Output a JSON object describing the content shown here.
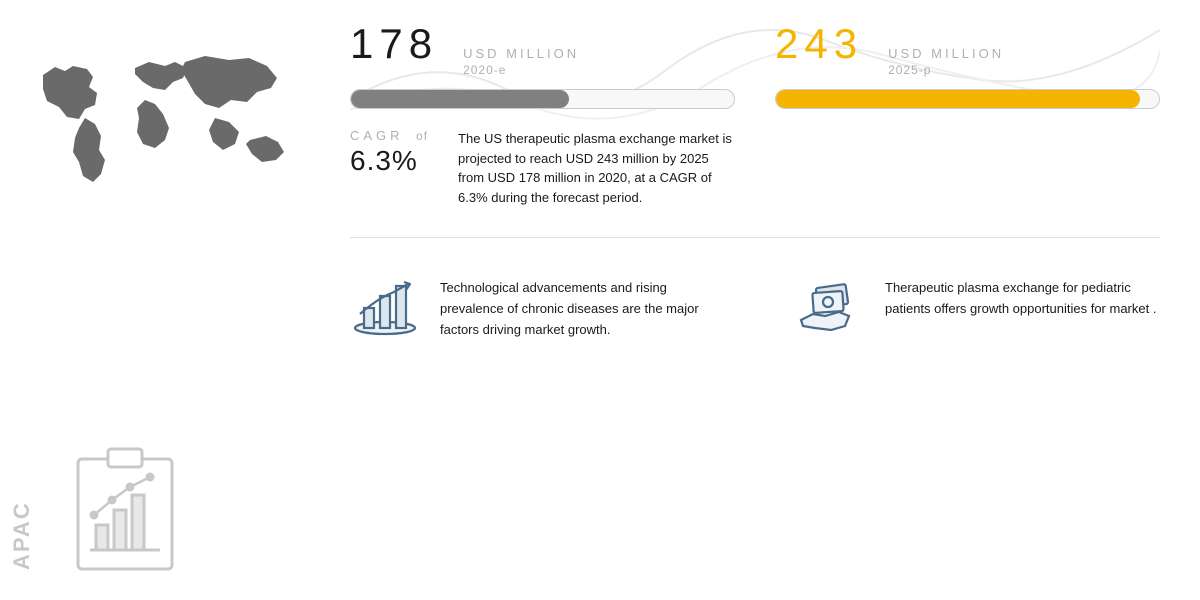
{
  "left": {
    "apac_label": "APAC"
  },
  "stats": {
    "wave_stroke": "#e8e8e8",
    "left": {
      "number": "178",
      "unit": "USD MILLION",
      "year": "2020-e",
      "number_color": "#1a1a1a",
      "bar_fill": "#808080",
      "bar_pct": 57
    },
    "right": {
      "number": "243",
      "unit": "USD MILLION",
      "year": "2025-p",
      "number_color": "#f5b400",
      "bar_fill": "#f5b400",
      "bar_pct": 95
    }
  },
  "cagr": {
    "label": "CAGR",
    "of": "of",
    "value": "6.3%",
    "description": "The US therapeutic plasma exchange market is projected to reach USD 243 million by 2025 from USD 178 million in 2020, at a CAGR of 6.3% during the forecast period."
  },
  "features": {
    "left": {
      "text": "Technological advancements and rising prevalence of chronic diseases are the major factors driving market growth."
    },
    "right": {
      "text": "Therapeutic plasma exchange for pediatric patients offers growth opportunities for market ."
    }
  },
  "colors": {
    "map_fill": "#6a6a6a",
    "icon_stroke": "#c8c8c8",
    "feature_icon_stroke": "#4a6a8a"
  }
}
